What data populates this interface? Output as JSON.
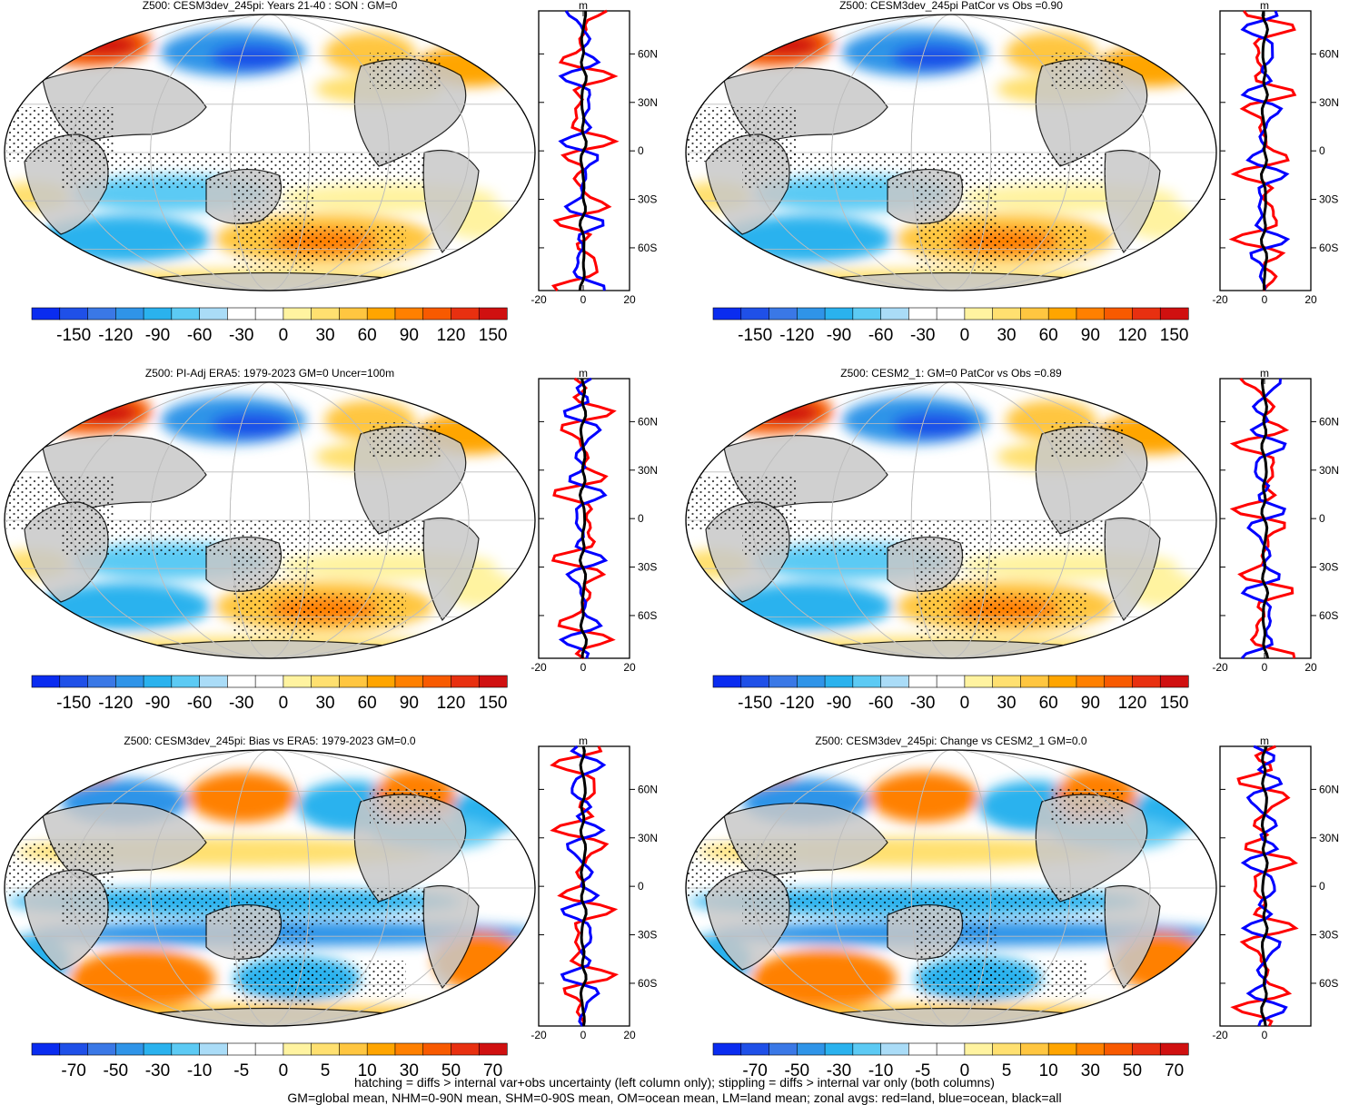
{
  "panels": [
    {
      "title": "Z500: CESM3dev_245pi: Years 21-40 : SON : GM=0",
      "colorbar_labels": [
        "-150",
        "-120",
        "-90",
        "-60",
        "-30",
        "0",
        "30",
        "60",
        "90",
        "120",
        "150"
      ],
      "palette": "blue-white-red"
    },
    {
      "title": "Z500: CESM3dev_245pi PatCor vs Obs =0.90",
      "colorbar_labels": [
        "-150",
        "-120",
        "-90",
        "-60",
        "-30",
        "0",
        "30",
        "60",
        "90",
        "120",
        "150"
      ],
      "palette": "blue-white-red"
    },
    {
      "title": "Z500: PI-Adj ERA5: 1979-2023 GM=0 Uncer=100m",
      "colorbar_labels": [
        "-150",
        "-120",
        "-90",
        "-60",
        "-30",
        "0",
        "30",
        "60",
        "90",
        "120",
        "150"
      ],
      "palette": "blue-white-red"
    },
    {
      "title": "Z500: CESM2_1: GM=0 PatCor vs Obs =0.89",
      "colorbar_labels": [
        "-150",
        "-120",
        "-90",
        "-60",
        "-30",
        "0",
        "30",
        "60",
        "90",
        "120",
        "150"
      ],
      "palette": "blue-white-red"
    },
    {
      "title": "Z500: CESM3dev_245pi: Bias vs ERA5: 1979-2023  GM=0.0",
      "colorbar_labels": [
        "-70",
        "-50",
        "-30",
        "-10",
        "-5",
        "0",
        "5",
        "10",
        "30",
        "50",
        "70"
      ],
      "palette": "blue-white-red"
    },
    {
      "title": "Z500: CESM3dev_245pi: Change vs CESM2_1 GM=0.0",
      "colorbar_labels": [
        "-70",
        "-50",
        "-30",
        "-10",
        "-5",
        "0",
        "5",
        "10",
        "30",
        "50",
        "70"
      ],
      "palette": "blue-white-red"
    }
  ],
  "zonal_profile": {
    "unit": "m",
    "lat_labels": [
      "60N",
      "30N",
      "0",
      "30S",
      "60S"
    ],
    "lats": [
      60,
      30,
      0,
      -30,
      -60
    ],
    "x_labels_full": [
      "-20",
      "0",
      "20"
    ],
    "x_labels_partial": [
      "-20",
      "0"
    ],
    "series_colors": {
      "land": "#ff0000",
      "ocean": "#0000ff",
      "all": "#000000"
    }
  },
  "footer": {
    "line1": "hatching = diffs > internal var+obs uncertainty (left column only); stippling = diffs > internal var only (both columns)",
    "line2": "GM=global mean, NHM=0-90N mean, SHM=0-90S mean, OM=ocean mean, LM=land mean; zonal avgs: red=land, blue=ocean, black=all"
  },
  "colors": {
    "land": "#c8c8c8",
    "ocean_neutral": "#ffffff",
    "coast": "#000000"
  }
}
